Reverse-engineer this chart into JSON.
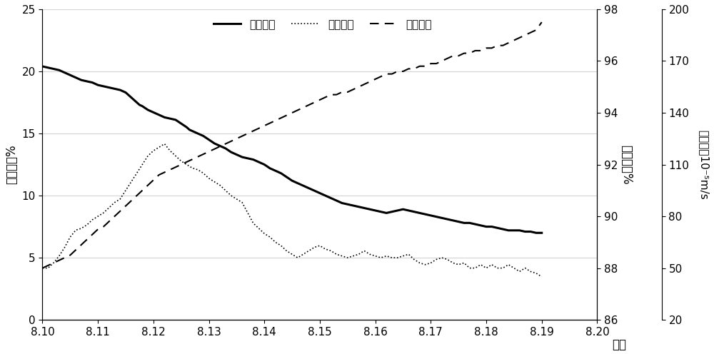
{
  "title": "",
  "xlabel": "日期",
  "ylabel_left": "氧气浓度%",
  "ylabel_mid": "相对湿度%",
  "ylabel_right": "气流速度10⁻⁵m/s",
  "x_labels": [
    "8.10",
    "8.11",
    "8.12",
    "8.13",
    "8.14",
    "8.15",
    "8.16",
    "8.17",
    "8.18",
    "8.19",
    "8.20"
  ],
  "x_values": [
    0,
    1,
    2,
    3,
    4,
    5,
    6,
    7,
    8,
    9,
    10
  ],
  "ylim_left": [
    0,
    25
  ],
  "ylim_mid": [
    86,
    98
  ],
  "ylim_right": [
    20,
    200
  ],
  "yticks_left": [
    0,
    5,
    10,
    15,
    20,
    25
  ],
  "yticks_mid": [
    86,
    88,
    90,
    92,
    94,
    96,
    98
  ],
  "yticks_right": [
    20,
    50,
    80,
    110,
    140,
    170,
    200
  ],
  "grid_y": [
    5,
    10,
    15,
    20,
    25
  ],
  "legend_labels": [
    "氧气浓度",
    "气流速度",
    "相对湿度"
  ],
  "oxygen_x": [
    0.0,
    0.1,
    0.2,
    0.3,
    0.35,
    0.4,
    0.5,
    0.6,
    0.7,
    0.8,
    0.9,
    1.0,
    1.1,
    1.2,
    1.3,
    1.4,
    1.45,
    1.5,
    1.6,
    1.7,
    1.75,
    1.8,
    1.9,
    2.0,
    2.1,
    2.2,
    2.3,
    2.4,
    2.5,
    2.6,
    2.65,
    2.7,
    2.8,
    2.9,
    3.0,
    3.1,
    3.2,
    3.3,
    3.4,
    3.5,
    3.6,
    3.7,
    3.8,
    3.9,
    4.0,
    4.1,
    4.2,
    4.3,
    4.4,
    4.5,
    4.6,
    4.7,
    4.8,
    4.9,
    5.0,
    5.1,
    5.2,
    5.3,
    5.4,
    5.5,
    5.6,
    5.7,
    5.8,
    5.9,
    6.0,
    6.1,
    6.2,
    6.3,
    6.4,
    6.5,
    6.6,
    6.7,
    6.8,
    6.9,
    7.0,
    7.1,
    7.2,
    7.3,
    7.4,
    7.5,
    7.6,
    7.7,
    7.8,
    7.9,
    8.0,
    8.1,
    8.2,
    8.3,
    8.4,
    8.5,
    8.6,
    8.7,
    8.8,
    8.9,
    9.0
  ],
  "oxygen_y": [
    20.4,
    20.3,
    20.2,
    20.1,
    20.0,
    19.9,
    19.7,
    19.5,
    19.3,
    19.2,
    19.1,
    18.9,
    18.8,
    18.7,
    18.6,
    18.5,
    18.4,
    18.3,
    17.9,
    17.5,
    17.3,
    17.2,
    16.9,
    16.7,
    16.5,
    16.3,
    16.2,
    16.1,
    15.8,
    15.5,
    15.3,
    15.2,
    15.0,
    14.8,
    14.5,
    14.2,
    14.0,
    13.8,
    13.5,
    13.3,
    13.1,
    13.0,
    12.9,
    12.7,
    12.5,
    12.2,
    12.0,
    11.8,
    11.5,
    11.2,
    11.0,
    10.8,
    10.6,
    10.4,
    10.2,
    10.0,
    9.8,
    9.6,
    9.4,
    9.3,
    9.2,
    9.1,
    9.0,
    8.9,
    8.8,
    8.7,
    8.6,
    8.7,
    8.8,
    8.9,
    8.8,
    8.7,
    8.6,
    8.5,
    8.4,
    8.3,
    8.2,
    8.1,
    8.0,
    7.9,
    7.8,
    7.8,
    7.7,
    7.6,
    7.5,
    7.5,
    7.4,
    7.3,
    7.2,
    7.2,
    7.2,
    7.1,
    7.1,
    7.0,
    7.0
  ],
  "airspeed_x": [
    0.0,
    0.1,
    0.2,
    0.3,
    0.4,
    0.5,
    0.6,
    0.7,
    0.8,
    0.9,
    1.0,
    1.1,
    1.2,
    1.3,
    1.4,
    1.5,
    1.6,
    1.7,
    1.8,
    1.9,
    2.0,
    2.1,
    2.2,
    2.3,
    2.4,
    2.5,
    2.6,
    2.7,
    2.8,
    2.9,
    3.0,
    3.1,
    3.2,
    3.3,
    3.4,
    3.5,
    3.6,
    3.7,
    3.8,
    3.9,
    4.0,
    4.1,
    4.2,
    4.3,
    4.4,
    4.5,
    4.6,
    4.7,
    4.8,
    4.9,
    5.0,
    5.1,
    5.2,
    5.3,
    5.4,
    5.5,
    5.6,
    5.7,
    5.8,
    5.9,
    6.0,
    6.1,
    6.2,
    6.3,
    6.4,
    6.5,
    6.6,
    6.7,
    6.8,
    6.9,
    7.0,
    7.1,
    7.2,
    7.3,
    7.4,
    7.5,
    7.6,
    7.7,
    7.8,
    7.9,
    8.0,
    8.1,
    8.2,
    8.3,
    8.4,
    8.5,
    8.6,
    8.7,
    8.8,
    8.9,
    9.0
  ],
  "airspeed_y": [
    50,
    50,
    53,
    57,
    62,
    68,
    72,
    73,
    75,
    78,
    80,
    82,
    85,
    88,
    90,
    95,
    100,
    105,
    110,
    115,
    118,
    120,
    122,
    118,
    115,
    112,
    110,
    108,
    107,
    105,
    102,
    100,
    98,
    95,
    92,
    90,
    88,
    82,
    76,
    73,
    70,
    68,
    65,
    63,
    60,
    58,
    56,
    58,
    60,
    62,
    63,
    61,
    60,
    58,
    57,
    56,
    57,
    58,
    60,
    58,
    57,
    56,
    57,
    56,
    56,
    57,
    58,
    55,
    53,
    52,
    53,
    55,
    56,
    55,
    53,
    52,
    53,
    50,
    50,
    52,
    50,
    52,
    50,
    50,
    52,
    50,
    48,
    50,
    48,
    47,
    45
  ],
  "humidity_x": [
    0.0,
    0.1,
    0.2,
    0.3,
    0.4,
    0.5,
    0.6,
    0.7,
    0.8,
    0.9,
    1.0,
    1.1,
    1.2,
    1.3,
    1.4,
    1.5,
    1.6,
    1.7,
    1.8,
    1.9,
    2.0,
    2.1,
    2.2,
    2.3,
    2.4,
    2.5,
    2.6,
    2.7,
    2.8,
    2.9,
    3.0,
    3.1,
    3.2,
    3.3,
    3.4,
    3.5,
    3.6,
    3.7,
    3.8,
    3.9,
    4.0,
    4.1,
    4.2,
    4.3,
    4.4,
    4.5,
    4.6,
    4.7,
    4.8,
    4.9,
    5.0,
    5.1,
    5.2,
    5.3,
    5.4,
    5.5,
    5.6,
    5.7,
    5.8,
    5.9,
    6.0,
    6.1,
    6.2,
    6.3,
    6.4,
    6.5,
    6.6,
    6.7,
    6.8,
    6.9,
    7.0,
    7.1,
    7.2,
    7.3,
    7.4,
    7.5,
    7.6,
    7.7,
    7.8,
    7.9,
    8.0,
    8.1,
    8.2,
    8.3,
    8.4,
    8.5,
    8.6,
    8.7,
    8.8,
    8.9,
    9.0
  ],
  "humidity_y": [
    88.0,
    88.1,
    88.2,
    88.3,
    88.4,
    88.5,
    88.7,
    88.9,
    89.1,
    89.3,
    89.5,
    89.6,
    89.8,
    90.0,
    90.2,
    90.4,
    90.6,
    90.8,
    91.0,
    91.2,
    91.4,
    91.6,
    91.7,
    91.8,
    91.9,
    92.0,
    92.1,
    92.2,
    92.3,
    92.4,
    92.5,
    92.6,
    92.7,
    92.8,
    92.9,
    93.0,
    93.1,
    93.2,
    93.3,
    93.4,
    93.5,
    93.6,
    93.7,
    93.8,
    93.9,
    94.0,
    94.1,
    94.2,
    94.3,
    94.4,
    94.5,
    94.6,
    94.7,
    94.7,
    94.8,
    94.8,
    94.9,
    95.0,
    95.1,
    95.2,
    95.3,
    95.4,
    95.5,
    95.5,
    95.6,
    95.6,
    95.7,
    95.7,
    95.8,
    95.8,
    95.9,
    95.9,
    96.0,
    96.1,
    96.2,
    96.2,
    96.3,
    96.3,
    96.4,
    96.4,
    96.5,
    96.5,
    96.6,
    96.6,
    96.7,
    96.8,
    96.9,
    97.0,
    97.1,
    97.2,
    97.5
  ]
}
